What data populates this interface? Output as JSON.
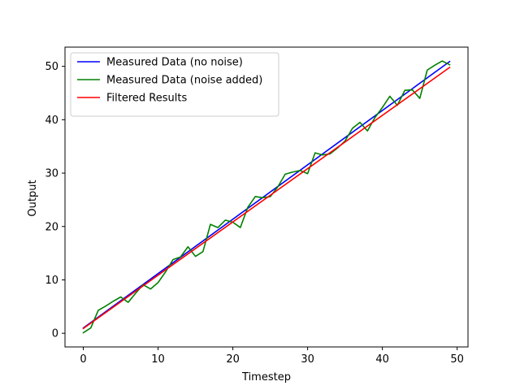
{
  "chart_data": {
    "type": "line",
    "title": "",
    "xlabel": "Timestep",
    "ylabel": "Output",
    "xlim": [
      -2.45,
      51.45
    ],
    "ylim": [
      -2.56,
      53.6
    ],
    "xticks": [
      0,
      10,
      20,
      30,
      40,
      50
    ],
    "yticks": [
      0,
      10,
      20,
      30,
      40,
      50
    ],
    "grid": false,
    "legend_position": "upper left",
    "series": [
      {
        "name": "Measured Data (no noise)",
        "color": "#0000ff",
        "x": [
          0,
          49
        ],
        "y": [
          1.0,
          50.9
        ]
      },
      {
        "name": "Measured Data (noise added)",
        "color": "#008000",
        "x": [
          0,
          1,
          2,
          3,
          4,
          5,
          6,
          7,
          8,
          9,
          10,
          11,
          12,
          13,
          14,
          15,
          16,
          17,
          18,
          19,
          20,
          21,
          22,
          23,
          24,
          25,
          26,
          27,
          28,
          29,
          30,
          31,
          32,
          33,
          34,
          35,
          36,
          37,
          38,
          39,
          40,
          41,
          42,
          43,
          44,
          45,
          46,
          47,
          48,
          49
        ],
        "y": [
          0.1,
          1.0,
          4.3,
          5.1,
          6.0,
          6.8,
          5.8,
          7.5,
          9.1,
          8.3,
          9.5,
          11.5,
          13.8,
          14.3,
          16.2,
          14.4,
          15.3,
          20.4,
          19.8,
          21.2,
          20.8,
          19.8,
          23.6,
          25.6,
          25.4,
          25.6,
          27.4,
          29.8,
          30.2,
          30.5,
          29.9,
          33.8,
          33.4,
          33.6,
          34.7,
          36.0,
          38.4,
          39.5,
          37.9,
          40.4,
          42.3,
          44.4,
          42.7,
          45.5,
          45.6,
          44.0,
          49.3,
          50.2,
          51.0,
          50.3
        ]
      },
      {
        "name": "Filtered Results",
        "color": "#ff0000",
        "x": [
          0,
          49
        ],
        "y": [
          0.9,
          49.8
        ]
      }
    ]
  }
}
